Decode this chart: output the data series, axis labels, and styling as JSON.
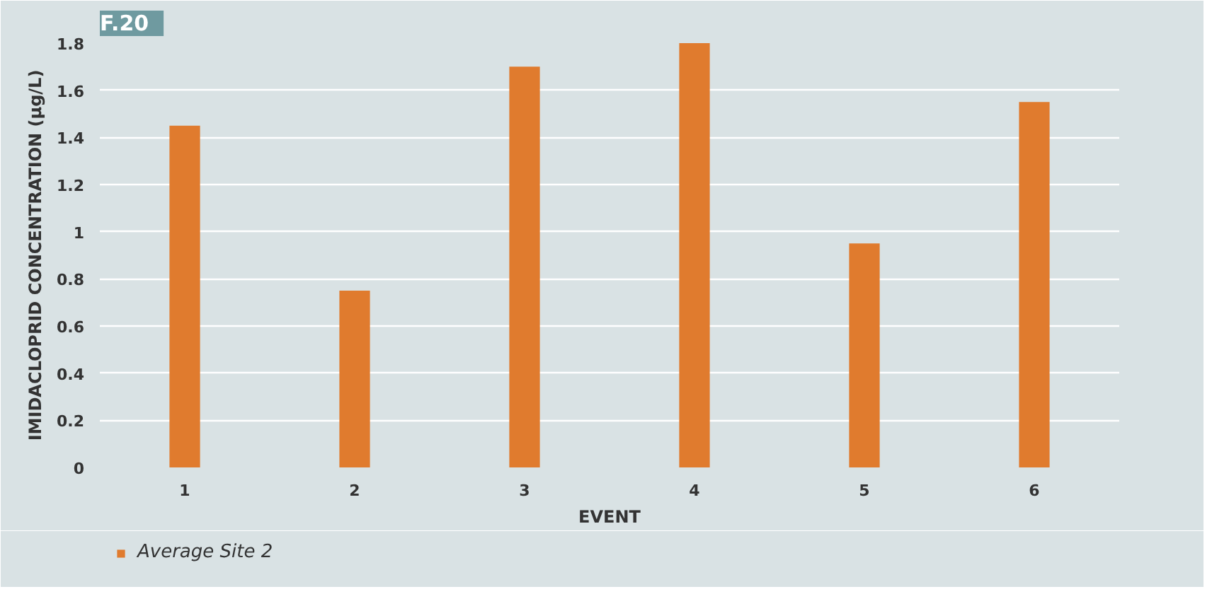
{
  "chart_data": {
    "type": "bar",
    "title": "F.20",
    "xlabel": "EVENT",
    "ylabel": "IMIDACLOPRID CONCENTRATION (µg/L)",
    "categories": [
      "1",
      "2",
      "3",
      "4",
      "5",
      "6"
    ],
    "series": [
      {
        "name": "Average Site 2",
        "color": "#e07b2e",
        "values": [
          1.45,
          0.75,
          1.7,
          1.8,
          0.95,
          1.55
        ]
      }
    ],
    "ylim": [
      0,
      1.8
    ],
    "yticks": [
      0,
      0.2,
      0.4,
      0.6,
      0.8,
      1,
      1.2,
      1.4,
      1.6,
      1.8
    ],
    "grid": "y",
    "legend": "bottom left"
  }
}
